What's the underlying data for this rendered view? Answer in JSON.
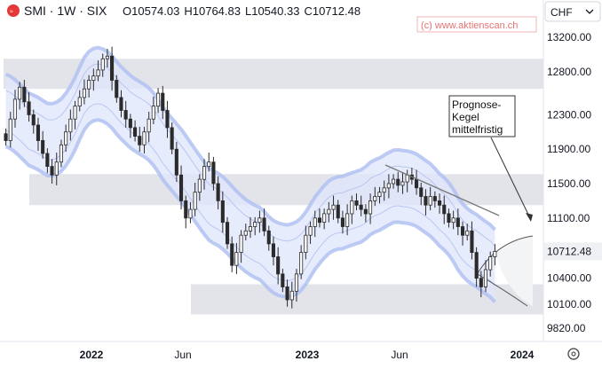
{
  "header": {
    "symbol_line": "SMI · 1W · SIX",
    "ohlc": {
      "o_label": "O",
      "o_value": "10574.03",
      "h_label": "H",
      "h_value": "10764.83",
      "l_label": "L",
      "l_value": "10540.33",
      "c_label": "C",
      "c_value": "10712.48"
    }
  },
  "watermark": "(c) www.aktienscan.ch",
  "currency": "CHF",
  "last_price": "10712.48",
  "annotation": {
    "lines": [
      "Prognose-",
      "Kegel",
      "mittelfristig"
    ]
  },
  "colors": {
    "up": "#2b2b2b",
    "down": "#2b2b2b",
    "band_fill": "#dfe6fb",
    "band_edge": "#aebff1",
    "zone_fill": "#e3e4e9",
    "trendline": "#777777",
    "last_price_bg": "#eef0f3",
    "logo": "#e53935"
  },
  "chart_data": {
    "type": "candlestick",
    "y_axis": {
      "ticks": [
        "13200.00",
        "12800.00",
        "12300.00",
        "11900.00",
        "11500.00",
        "11100.00",
        "10712.48",
        "10400.00",
        "10100.00",
        "9820.00"
      ],
      "range": [
        9750,
        13400
      ]
    },
    "x_axis": {
      "ticks": [
        "2022",
        "Jun",
        "2023",
        "Jun",
        "2024"
      ]
    },
    "zones": [
      {
        "y_top": 12950,
        "y_bottom": 12600
      },
      {
        "y_top": 11610,
        "y_bottom": 11250
      },
      {
        "y_top": 10330,
        "y_bottom": 9980
      }
    ],
    "closes": [
      12000,
      12250,
      12480,
      12620,
      12450,
      12300,
      12180,
      12000,
      11850,
      11700,
      11600,
      11750,
      11950,
      12100,
      12250,
      12400,
      12500,
      12600,
      12700,
      12750,
      12820,
      12950,
      12980,
      12700,
      12500,
      12350,
      12250,
      12150,
      12050,
      11950,
      12100,
      12250,
      12400,
      12550,
      12350,
      12150,
      11900,
      11600,
      11300,
      11100,
      11200,
      11400,
      11550,
      11700,
      11750,
      11500,
      11300,
      11050,
      10800,
      10550,
      10700,
      10900,
      10950,
      11000,
      11050,
      11100,
      10950,
      10800,
      10650,
      10450,
      10300,
      10150,
      10250,
      10450,
      10700,
      10900,
      11000,
      11100,
      11050,
      11150,
      11200,
      11250,
      11100,
      11000,
      11150,
      11300,
      11250,
      11200,
      11150,
      11300,
      11350,
      11400,
      11450,
      11500,
      11550,
      11480,
      11520,
      11600,
      11550,
      11450,
      11350,
      11250,
      11350,
      11300,
      11250,
      11150,
      11050,
      11100,
      11000,
      10900,
      10950,
      10700,
      10400,
      10300,
      10500,
      10650,
      10712.48
    ]
  }
}
